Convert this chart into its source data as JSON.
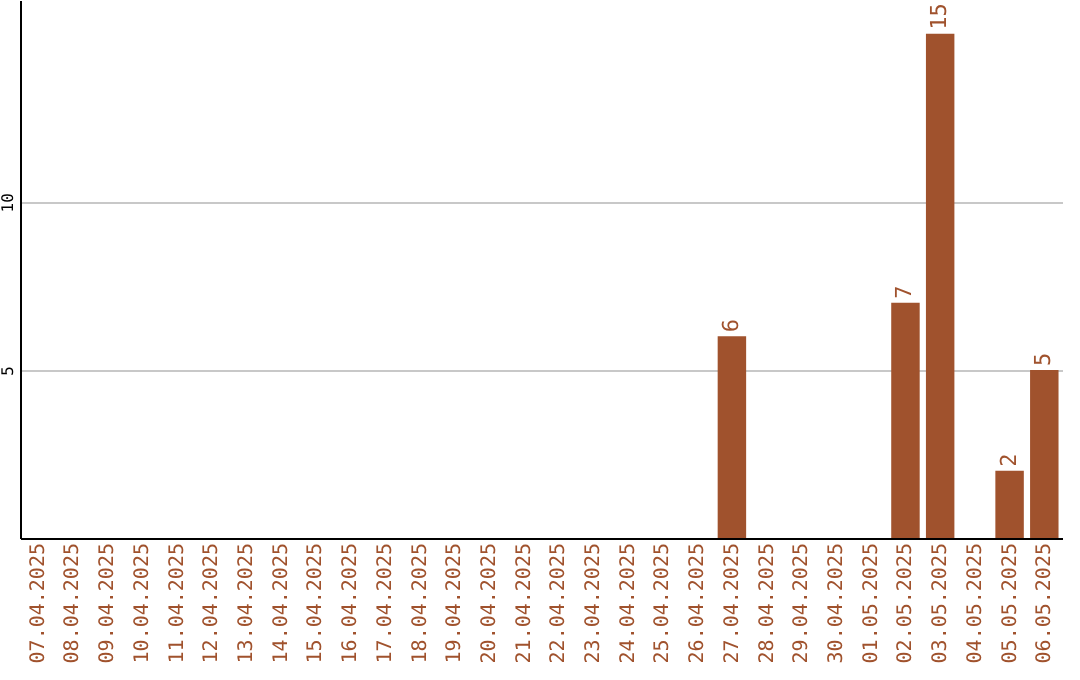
{
  "chart_data": {
    "type": "bar",
    "categories": [
      "07.04.2025",
      "08.04.2025",
      "09.04.2025",
      "10.04.2025",
      "11.04.2025",
      "12.04.2025",
      "13.04.2025",
      "14.04.2025",
      "15.04.2025",
      "16.04.2025",
      "17.04.2025",
      "18.04.2025",
      "19.04.2025",
      "20.04.2025",
      "21.04.2025",
      "22.04.2025",
      "23.04.2025",
      "24.04.2025",
      "25.04.2025",
      "26.04.2025",
      "27.04.2025",
      "28.04.2025",
      "29.04.2025",
      "30.04.2025",
      "01.05.2025",
      "02.05.2025",
      "03.05.2025",
      "04.05.2025",
      "05.05.2025",
      "06.05.2025"
    ],
    "values": [
      0,
      0,
      0,
      0,
      0,
      0,
      0,
      0,
      0,
      0,
      0,
      0,
      0,
      0,
      0,
      0,
      0,
      0,
      0,
      0,
      6,
      0,
      0,
      0,
      0,
      7,
      15,
      0,
      2,
      5
    ],
    "value_labels": [
      null,
      null,
      null,
      null,
      null,
      null,
      null,
      null,
      null,
      null,
      null,
      null,
      null,
      null,
      null,
      null,
      null,
      null,
      null,
      null,
      "6",
      null,
      null,
      null,
      null,
      "7",
      "15",
      null,
      "2",
      "5"
    ],
    "color": "#a0522d",
    "ylim": [
      0,
      16
    ],
    "yticks": [
      5,
      10
    ],
    "grid": "y"
  }
}
